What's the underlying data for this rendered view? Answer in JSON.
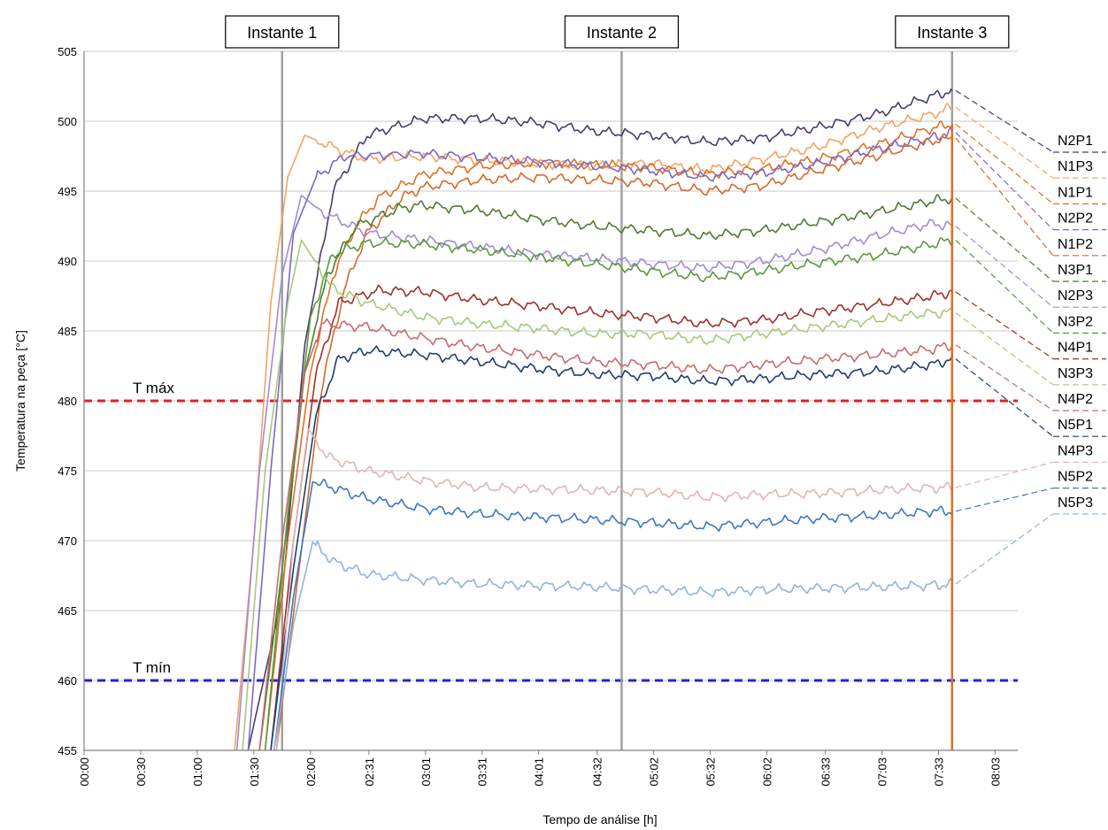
{
  "chart_data": {
    "type": "line",
    "xlabel": "Tempo de análise [h]",
    "ylabel": "Temperatura na peça [°C]",
    "ylim": [
      455,
      505
    ],
    "y_ticks": [
      455,
      460,
      465,
      470,
      475,
      480,
      485,
      490,
      495,
      500,
      505
    ],
    "x_tick_labels": [
      "00:00",
      "00:30",
      "01:00",
      "01:30",
      "02:00",
      "02:31",
      "03:01",
      "03:31",
      "04:01",
      "04:32",
      "05:02",
      "05:32",
      "06:02",
      "06:33",
      "07:03",
      "07:33",
      "08:03"
    ],
    "x_tick_hours": [
      0,
      0.5,
      1,
      1.5,
      2,
      2.517,
      3.017,
      3.517,
      4.017,
      4.533,
      5.033,
      5.533,
      6.033,
      6.55,
      7.05,
      7.55,
      8.05
    ],
    "grid": "horizontal",
    "reference_lines": [
      {
        "label": "T máx",
        "value": 480,
        "color": "#e02020"
      },
      {
        "label": "T mín",
        "value": 460,
        "color": "#2020e0"
      }
    ],
    "instants": [
      {
        "label": "Instante 1",
        "hour": 1.75
      },
      {
        "label": "Instante 2",
        "hour": 4.75
      },
      {
        "label": "Instante 3",
        "hour": 7.67
      }
    ],
    "series": [
      {
        "name": "N2P1",
        "color": "#4b3b6e",
        "x": [
          1.45,
          1.75,
          1.95,
          2.2,
          2.5,
          3.0,
          3.5,
          4.0,
          4.5,
          5.0,
          5.5,
          6.0,
          6.5,
          7.0,
          7.5,
          7.67
        ],
        "y": [
          455,
          466,
          484,
          495,
          499,
          500.2,
          500.2,
          499.9,
          499.3,
          499,
          498.5,
          498.8,
          499.6,
          500.5,
          501.8,
          502.2
        ]
      },
      {
        "name": "N1P3",
        "color": "#f4a460",
        "x": [
          1.33,
          1.5,
          1.65,
          1.8,
          1.95,
          2.3,
          2.5,
          3.0,
          3.5,
          4.0,
          4.5,
          5.0,
          5.5,
          6.0,
          6.5,
          7.0,
          7.5,
          7.67
        ],
        "y": [
          455,
          470,
          487,
          496,
          499,
          497.8,
          497.3,
          497.5,
          497.2,
          497,
          496.8,
          497,
          496.5,
          497.3,
          498.2,
          499.5,
          500.5,
          501
        ]
      },
      {
        "name": "N1P1",
        "color": "#e07020",
        "x": [
          1.6,
          1.8,
          2.0,
          2.2,
          2.4,
          2.6,
          3.0,
          3.5,
          4.0,
          4.5,
          5.0,
          5.5,
          6.0,
          6.5,
          7.0,
          7.5,
          7.67
        ],
        "y": [
          455,
          470,
          482,
          489,
          492.5,
          494.5,
          496.2,
          496.8,
          497,
          496.9,
          496.7,
          496.2,
          496.6,
          497.3,
          498.3,
          499.5,
          499.8
        ]
      },
      {
        "name": "N2P2",
        "color": "#7b68c8",
        "x": [
          1.45,
          1.65,
          1.85,
          2.05,
          2.3,
          3.0,
          3.5,
          4.0,
          4.5,
          5.0,
          5.5,
          6.0,
          6.5,
          7.0,
          7.5,
          7.67
        ],
        "y": [
          455,
          475,
          492,
          496,
          497.5,
          497.7,
          497.4,
          497.1,
          496.8,
          496.5,
          496,
          496.3,
          497,
          498,
          498.8,
          499.2
        ]
      },
      {
        "name": "N1P2",
        "color": "#d4692a",
        "x": [
          1.7,
          1.9,
          2.1,
          2.3,
          2.5,
          2.8,
          3.0,
          3.5,
          4.0,
          4.5,
          5.0,
          5.5,
          6.0,
          6.5,
          7.0,
          7.5,
          7.67
        ],
        "y": [
          455,
          468,
          481,
          488,
          492,
          494.5,
          495.3,
          495.8,
          496,
          495.8,
          495.6,
          495,
          495.4,
          496.5,
          497.5,
          498.6,
          498.8
        ]
      },
      {
        "name": "N3P1",
        "color": "#4e7c2e",
        "x": [
          1.55,
          1.75,
          1.95,
          2.15,
          2.4,
          2.8,
          3.0,
          3.5,
          4.0,
          4.5,
          5.0,
          5.5,
          6.0,
          6.5,
          7.0,
          7.5,
          7.67
        ],
        "y": [
          455,
          468,
          482,
          489,
          492.5,
          493.8,
          494,
          493.6,
          493,
          492.5,
          492.2,
          491.8,
          492.2,
          492.8,
          493.5,
          494.3,
          494.5
        ]
      },
      {
        "name": "N2P3",
        "color": "#a38bd4",
        "x": [
          1.35,
          1.55,
          1.75,
          1.92,
          2.1,
          2.5,
          3.0,
          3.5,
          4.0,
          4.5,
          5.0,
          5.5,
          6.0,
          6.5,
          7.0,
          7.5,
          7.67
        ],
        "y": [
          455,
          475,
          489,
          494.7,
          493.5,
          492,
          491.5,
          491,
          490.5,
          490.2,
          489.8,
          489.5,
          490,
          490.8,
          491.8,
          492.7,
          492.5
        ]
      },
      {
        "name": "N3P2",
        "color": "#5a9a3a",
        "x": [
          1.6,
          1.8,
          2.0,
          2.2,
          2.5,
          3.0,
          3.5,
          4.0,
          4.5,
          5.0,
          5.5,
          6.0,
          6.5,
          7.0,
          7.5,
          7.67
        ],
        "y": [
          455,
          472,
          486,
          490.5,
          491.3,
          491.2,
          490.8,
          490.3,
          489.8,
          489.3,
          488.8,
          489.3,
          489.9,
          490.4,
          491.2,
          491.5
        ]
      },
      {
        "name": "N4P1",
        "color": "#a0302a",
        "x": [
          1.65,
          1.85,
          2.05,
          2.25,
          2.6,
          3.0,
          3.5,
          4.0,
          4.5,
          5.0,
          5.5,
          6.0,
          6.5,
          7.0,
          7.5,
          7.67
        ],
        "y": [
          455,
          470,
          482,
          487,
          487.9,
          487.8,
          487.2,
          486.8,
          486.3,
          486,
          485.5,
          485.8,
          486.4,
          486.9,
          487.5,
          487.8
        ]
      },
      {
        "name": "N3P3",
        "color": "#a8c878",
        "x": [
          1.4,
          1.6,
          1.8,
          1.92,
          2.2,
          2.5,
          3.0,
          3.5,
          4.0,
          4.5,
          5.0,
          5.5,
          6.0,
          6.5,
          7.0,
          7.5,
          7.67
        ],
        "y": [
          455,
          475,
          487,
          491.5,
          488,
          487,
          486,
          485.5,
          485.2,
          484.8,
          484.8,
          484.3,
          484.8,
          485.3,
          485.8,
          486.3,
          486.3
        ]
      },
      {
        "name": "N4P2",
        "color": "#c96b6b",
        "x": [
          1.55,
          1.75,
          1.95,
          2.1,
          2.5,
          3.0,
          3.5,
          4.0,
          4.5,
          5.0,
          5.5,
          6.0,
          6.5,
          7.0,
          7.5,
          7.67
        ],
        "y": [
          455,
          470,
          482,
          485.5,
          485.3,
          484.5,
          483.8,
          483.3,
          482.8,
          482.6,
          482.2,
          482.6,
          483,
          483.3,
          483.7,
          484
        ]
      },
      {
        "name": "N5P1",
        "color": "#1f3f6e",
        "x": [
          1.65,
          1.85,
          2.05,
          2.25,
          2.5,
          3.0,
          3.5,
          4.0,
          4.5,
          5.0,
          5.5,
          6.0,
          6.5,
          7.0,
          7.5,
          7.67
        ],
        "y": [
          455,
          468,
          479,
          483,
          483.6,
          483.3,
          482.8,
          482.3,
          481.9,
          481.8,
          481.4,
          481.6,
          481.9,
          482.1,
          482.6,
          483
        ]
      },
      {
        "name": "N4P3",
        "color": "#e3b4b4",
        "x": [
          1.7,
          1.85,
          1.98,
          2.15,
          2.5,
          3.0,
          3.5,
          4.0,
          4.5,
          5.0,
          5.5,
          6.0,
          6.5,
          7.0,
          7.5,
          7.67
        ],
        "y": [
          455,
          470,
          478,
          476,
          475,
          474.3,
          473.8,
          473.7,
          473.6,
          473.5,
          473.1,
          473.3,
          473.4,
          473.6,
          473.8,
          473.8
        ]
      },
      {
        "name": "N5P2",
        "color": "#3a78c8",
        "x": [
          1.68,
          1.85,
          2.02,
          2.2,
          2.5,
          3.0,
          3.5,
          4.0,
          4.5,
          5.0,
          5.5,
          6.0,
          6.5,
          7.0,
          7.5,
          7.67
        ],
        "y": [
          455,
          466,
          474.2,
          473.8,
          473,
          472.3,
          471.9,
          471.7,
          471.5,
          471.3,
          471,
          471.3,
          471.6,
          471.8,
          472.1,
          472.1
        ]
      },
      {
        "name": "N5P3",
        "color": "#8fb4e0",
        "x": [
          1.68,
          1.85,
          2.02,
          2.2,
          2.5,
          3.0,
          3.5,
          4.0,
          4.5,
          5.0,
          5.5,
          6.0,
          6.5,
          7.0,
          7.5,
          7.67
        ],
        "y": [
          455,
          464,
          469.9,
          468.5,
          467.6,
          467.2,
          466.9,
          466.8,
          466.7,
          466.5,
          466.3,
          466.5,
          466.6,
          466.7,
          466.8,
          466.9
        ]
      }
    ]
  }
}
